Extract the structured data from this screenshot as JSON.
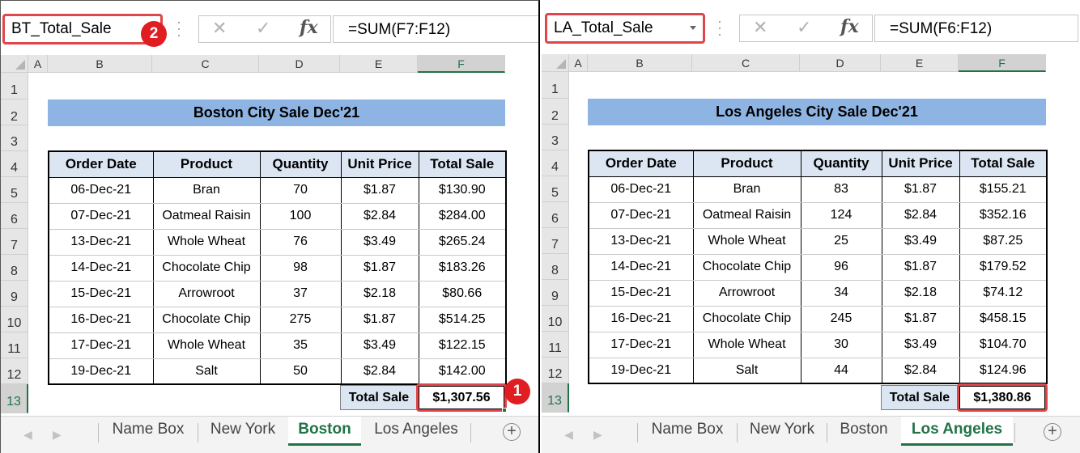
{
  "columns": [
    "A",
    "B",
    "C",
    "D",
    "E",
    "F"
  ],
  "rows": [
    "1",
    "2",
    "3",
    "4",
    "5",
    "6",
    "7",
    "8",
    "9",
    "10",
    "11",
    "12",
    "13"
  ],
  "headers": [
    "Order Date",
    "Product",
    "Quantity",
    "Unit Price",
    "Total Sale"
  ],
  "total_label": "Total Sale",
  "sheet_tabs": [
    "Name Box",
    "New York",
    "Boston",
    "Los Angeles"
  ],
  "add_sheet_glyph": "+",
  "colors": {
    "title_fill": "#8eb4e3",
    "header_fill": "#dce6f2",
    "highlight": "#e0454a",
    "badge": "#e11d24",
    "excel_green": "#217346"
  },
  "left": {
    "name_box": "BT_Total_Sale",
    "name_box_badge": "2",
    "formula": "=SUM(F7:F12)",
    "title": "Boston City Sale Dec'21",
    "active_tab": "Boston",
    "rows": [
      [
        "06-Dec-21",
        "Bran",
        "70",
        "$1.87",
        "$130.90"
      ],
      [
        "07-Dec-21",
        "Oatmeal Raisin",
        "100",
        "$2.84",
        "$284.00"
      ],
      [
        "13-Dec-21",
        "Whole Wheat",
        "76",
        "$3.49",
        "$265.24"
      ],
      [
        "14-Dec-21",
        "Chocolate Chip",
        "98",
        "$1.87",
        "$183.26"
      ],
      [
        "15-Dec-21",
        "Arrowroot",
        "37",
        "$2.18",
        "$80.66"
      ],
      [
        "16-Dec-21",
        "Chocolate Chip",
        "275",
        "$1.87",
        "$514.25"
      ],
      [
        "17-Dec-21",
        "Whole Wheat",
        "35",
        "$3.49",
        "$122.15"
      ],
      [
        "19-Dec-21",
        "Salt",
        "50",
        "$2.84",
        "$142.00"
      ]
    ],
    "total_value": "$1,307.56",
    "total_badge": "1"
  },
  "right": {
    "name_box": "LA_Total_Sale",
    "formula": "=SUM(F6:F12)",
    "title": "Los Angeles City Sale Dec'21",
    "active_tab": "Los Angeles",
    "rows": [
      [
        "06-Dec-21",
        "Bran",
        "83",
        "$1.87",
        "$155.21"
      ],
      [
        "07-Dec-21",
        "Oatmeal Raisin",
        "124",
        "$2.84",
        "$352.16"
      ],
      [
        "13-Dec-21",
        "Whole Wheat",
        "25",
        "$3.49",
        "$87.25"
      ],
      [
        "14-Dec-21",
        "Chocolate Chip",
        "96",
        "$1.87",
        "$179.52"
      ],
      [
        "15-Dec-21",
        "Arrowroot",
        "34",
        "$2.18",
        "$74.12"
      ],
      [
        "16-Dec-21",
        "Chocolate Chip",
        "245",
        "$1.87",
        "$458.15"
      ],
      [
        "17-Dec-21",
        "Whole Wheat",
        "30",
        "$3.49",
        "$104.70"
      ],
      [
        "19-Dec-21",
        "Salt",
        "44",
        "$2.84",
        "$124.96"
      ]
    ],
    "total_value": "$1,380.86"
  }
}
